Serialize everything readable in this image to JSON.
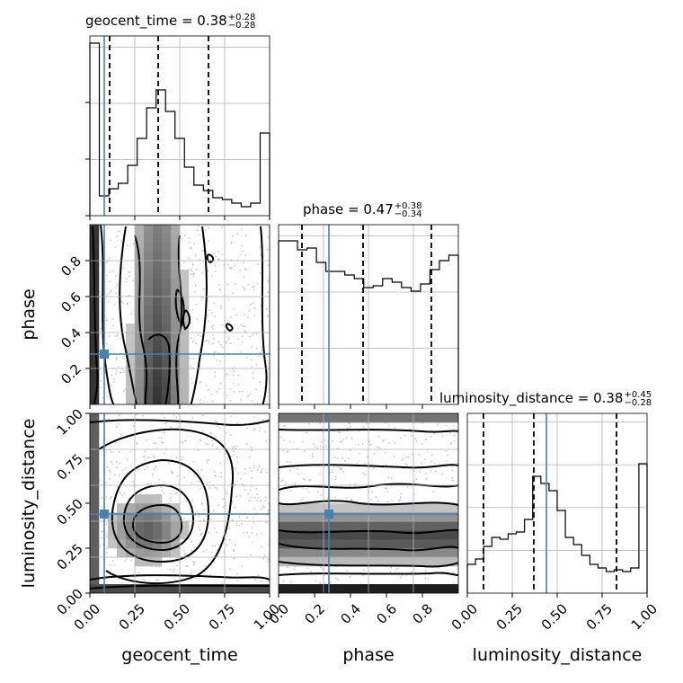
{
  "chart_data": {
    "type": "corner",
    "parameters": [
      "geocent_time",
      "phase",
      "luminosity_distance"
    ],
    "axis_labels": [
      "geocent_time",
      "phase",
      "luminosity_distance"
    ],
    "titles": [
      {
        "name": "geocent_time",
        "median": "0.38",
        "plus": "+0.28",
        "minus": "−0.28"
      },
      {
        "name": "phase",
        "median": "0.47",
        "plus": "+0.38",
        "minus": "−0.34"
      },
      {
        "name": "luminosity_distance",
        "median": "0.38",
        "plus": "+0.45",
        "minus": "−0.28"
      }
    ],
    "ranges": [
      [
        0,
        1
      ],
      [
        0,
        1
      ],
      [
        0,
        1
      ]
    ],
    "ticks": {
      "geocent_time": [
        "0.00",
        "0.25",
        "0.50",
        "0.75",
        "1.00"
      ],
      "phase_y": [
        "0.2",
        "0.4",
        "0.6",
        "0.8"
      ],
      "phase_x": [
        "0.0",
        "0.2",
        "0.4",
        "0.6",
        "0.8"
      ],
      "luminosity_distance": [
        "0.00",
        "0.25",
        "0.50",
        "0.75",
        "1.00"
      ]
    },
    "truths": {
      "geocent_time": 0.08,
      "phase": 0.28,
      "luminosity_distance": 0.44
    },
    "quantiles": {
      "geocent_time": [
        0.11,
        0.38,
        0.66
      ],
      "phase": [
        0.13,
        0.47,
        0.85
      ],
      "luminosity_distance": [
        0.09,
        0.37,
        0.83
      ]
    },
    "histograms": {
      "geocent_time": [
        0.96,
        0.11,
        0.15,
        0.18,
        0.28,
        0.43,
        0.6,
        0.7,
        0.58,
        0.43,
        0.27,
        0.17,
        0.14,
        0.1,
        0.09,
        0.07,
        0.05,
        0.07,
        0.46
      ],
      "phase": [
        0.91,
        0.91,
        0.86,
        0.87,
        0.79,
        0.74,
        0.74,
        0.72,
        0.7,
        0.65,
        0.66,
        0.7,
        0.68,
        0.65,
        0.63,
        0.67,
        0.75,
        0.8,
        0.83
      ],
      "luminosity_distance": [
        0.16,
        0.19,
        0.26,
        0.31,
        0.3,
        0.33,
        0.34,
        0.41,
        0.65,
        0.61,
        0.57,
        0.46,
        0.31,
        0.27,
        0.21,
        0.16,
        0.14,
        0.12,
        0.13,
        0.12,
        0.14,
        0.72
      ]
    },
    "grid": true,
    "contour_levels": [
      "0.5",
      "1.0",
      "1.5",
      "2.0"
    ]
  }
}
